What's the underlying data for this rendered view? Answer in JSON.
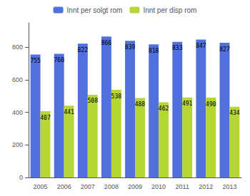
{
  "chart_data": {
    "type": "bar",
    "categories": [
      "2005",
      "2006",
      "2007",
      "2008",
      "2009",
      "2010",
      "2011",
      "2012",
      "2013"
    ],
    "series": [
      {
        "name": "Innt per solgt rom",
        "values": [
          755,
          760,
          822,
          866,
          839,
          818,
          833,
          847,
          827
        ]
      },
      {
        "name": "Innt per disp rom",
        "values": [
          407,
          441,
          508,
          538,
          488,
          462,
          491,
          490,
          434
        ]
      }
    ],
    "ylim": [
      0,
      950
    ],
    "yticks": [
      0,
      200,
      400,
      600,
      800
    ],
    "grid": false,
    "legend": "top",
    "data_labels": true
  }
}
